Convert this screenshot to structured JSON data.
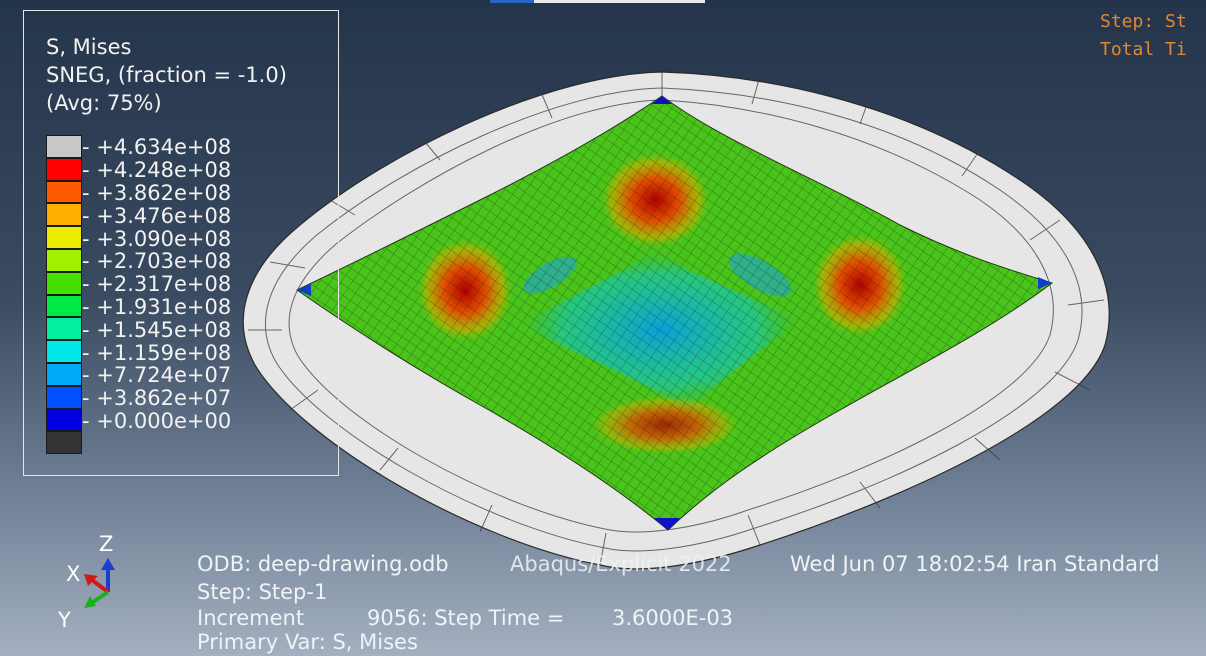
{
  "legend": {
    "title": "S, Mises",
    "subtitle": "SNEG, (fraction = -1.0)",
    "average": "(Avg: 75%)",
    "levels": [
      {
        "label": "+4.634e+08",
        "color": "#c8c8c8"
      },
      {
        "label": "+4.248e+08",
        "color": "#ff0000"
      },
      {
        "label": "+3.862e+08",
        "color": "#ff5a00"
      },
      {
        "label": "+3.476e+08",
        "color": "#ffae00"
      },
      {
        "label": "+3.090e+08",
        "color": "#ecec00"
      },
      {
        "label": "+2.703e+08",
        "color": "#a0f000"
      },
      {
        "label": "+2.317e+08",
        "color": "#46e000"
      },
      {
        "label": "+1.931e+08",
        "color": "#00e846"
      },
      {
        "label": "+1.545e+08",
        "color": "#00f0a0"
      },
      {
        "label": "+1.159e+08",
        "color": "#00e8e8"
      },
      {
        "label": "+7.724e+07",
        "color": "#00a8f8"
      },
      {
        "label": "+3.862e+07",
        "color": "#0050ff"
      },
      {
        "label": "+0.000e+00",
        "color": "#0000e0"
      }
    ],
    "bottom_swatch_color": "#333333"
  },
  "status": {
    "step": "Step: St",
    "total_time": "Total Ti"
  },
  "info": {
    "odb": "ODB: deep-drawing.odb",
    "solver": "Abaqus/Explicit 2022",
    "date": "Wed Jun 07 18:02:54 Iran Standard",
    "step": "Step: Step-1",
    "increment_label": "Increment",
    "increment_value": "9056: Step Time =",
    "step_time": "3.6000E-03",
    "primary_var": "Primary Var: S, Mises"
  },
  "triad": {
    "x": "X",
    "y": "Y",
    "z": "Z"
  }
}
